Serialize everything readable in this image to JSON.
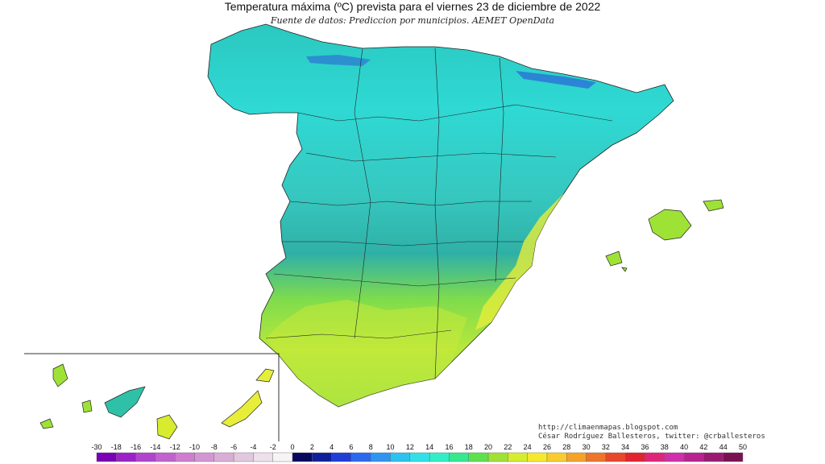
{
  "header": {
    "title": "Temperatura máxima (ºC) prevista para el viernes 23 de diciembre de 2022",
    "subtitle": "Fuente de datos: Prediccion por municipios. AEMET OpenData"
  },
  "credits": {
    "url": "http://climaenmapas.blogspot.com",
    "author": "César Rodríguez Ballesteros, twitter: @crballesteros"
  },
  "legend": {
    "ticks": [
      "-30",
      "-18",
      "-16",
      "-14",
      "-12",
      "-10",
      "-8",
      "-6",
      "-4",
      "-2",
      "0",
      "2",
      "4",
      "6",
      "8",
      "10",
      "12",
      "14",
      "16",
      "18",
      "20",
      "22",
      "24",
      "26",
      "28",
      "30",
      "32",
      "34",
      "36",
      "38",
      "40",
      "42",
      "44",
      "50"
    ],
    "colors": [
      "#7a00b8",
      "#9a22c8",
      "#b144cf",
      "#c361cf",
      "#cf7dd0",
      "#d496d2",
      "#d9aed6",
      "#e2c8de",
      "#ece0ea",
      "#f7f4f6",
      "#08085e",
      "#0f1f9a",
      "#1d3fd6",
      "#2c69ec",
      "#2f95f1",
      "#2fc1ef",
      "#2fe1e6",
      "#31eec6",
      "#36e88e",
      "#5ee14e",
      "#9fe236",
      "#d7ec2f",
      "#f5e92e",
      "#f7cc2c",
      "#f4a22a",
      "#ee742a",
      "#e7472a",
      "#e1242f",
      "#e0247a",
      "#d02eaa",
      "#b7238f",
      "#9a1a72",
      "#7a1252"
    ]
  },
  "palette": {
    "cool_teal": "#2ab8ad",
    "cyan": "#25dfe0",
    "green": "#78e04a",
    "yellow": "#e6ee3a",
    "border": "#222222"
  }
}
